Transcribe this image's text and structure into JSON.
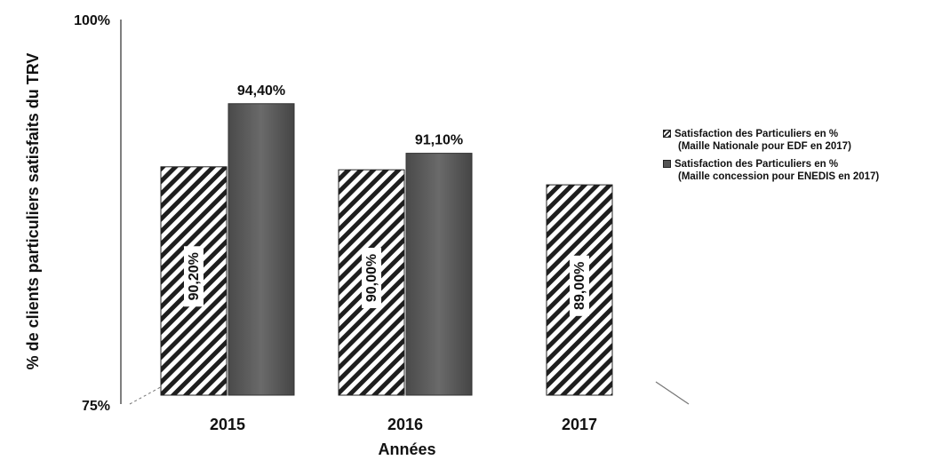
{
  "chart_data": {
    "type": "bar",
    "categories": [
      "2015",
      "2016",
      "2017"
    ],
    "series": [
      {
        "name": "Satisfaction des Particuliers en % (Maille Nationale pour EDF en 2017)",
        "values": [
          90.2,
          90.0,
          89.0
        ],
        "labels": [
          "90,20%",
          "90,00%",
          "89,00%"
        ],
        "pattern": "hatched",
        "color": "#222222"
      },
      {
        "name": "Satisfaction des Particuliers en % (Maille concession pour ENEDIS en 2017)",
        "values": [
          94.4,
          91.1,
          null
        ],
        "labels": [
          "94,40%",
          "91,10%",
          null
        ],
        "pattern": "solid",
        "color": "#5a5a5a"
      }
    ],
    "ylim": [
      75,
      100
    ],
    "yticks": [
      "75%",
      "100%"
    ],
    "xlabel": "Années",
    "ylabel": "% de clients particuliers satisfaits du TRV",
    "legend_position": "right",
    "grid": false
  },
  "legend": {
    "item1_line1": "Satisfaction des Particuliers en %",
    "item1_line2": "(Maille Nationale pour EDF en 2017)",
    "item2_line1": "Satisfaction des Particuliers en %",
    "item2_line2": "(Maille concession pour ENEDIS en 2017)"
  }
}
